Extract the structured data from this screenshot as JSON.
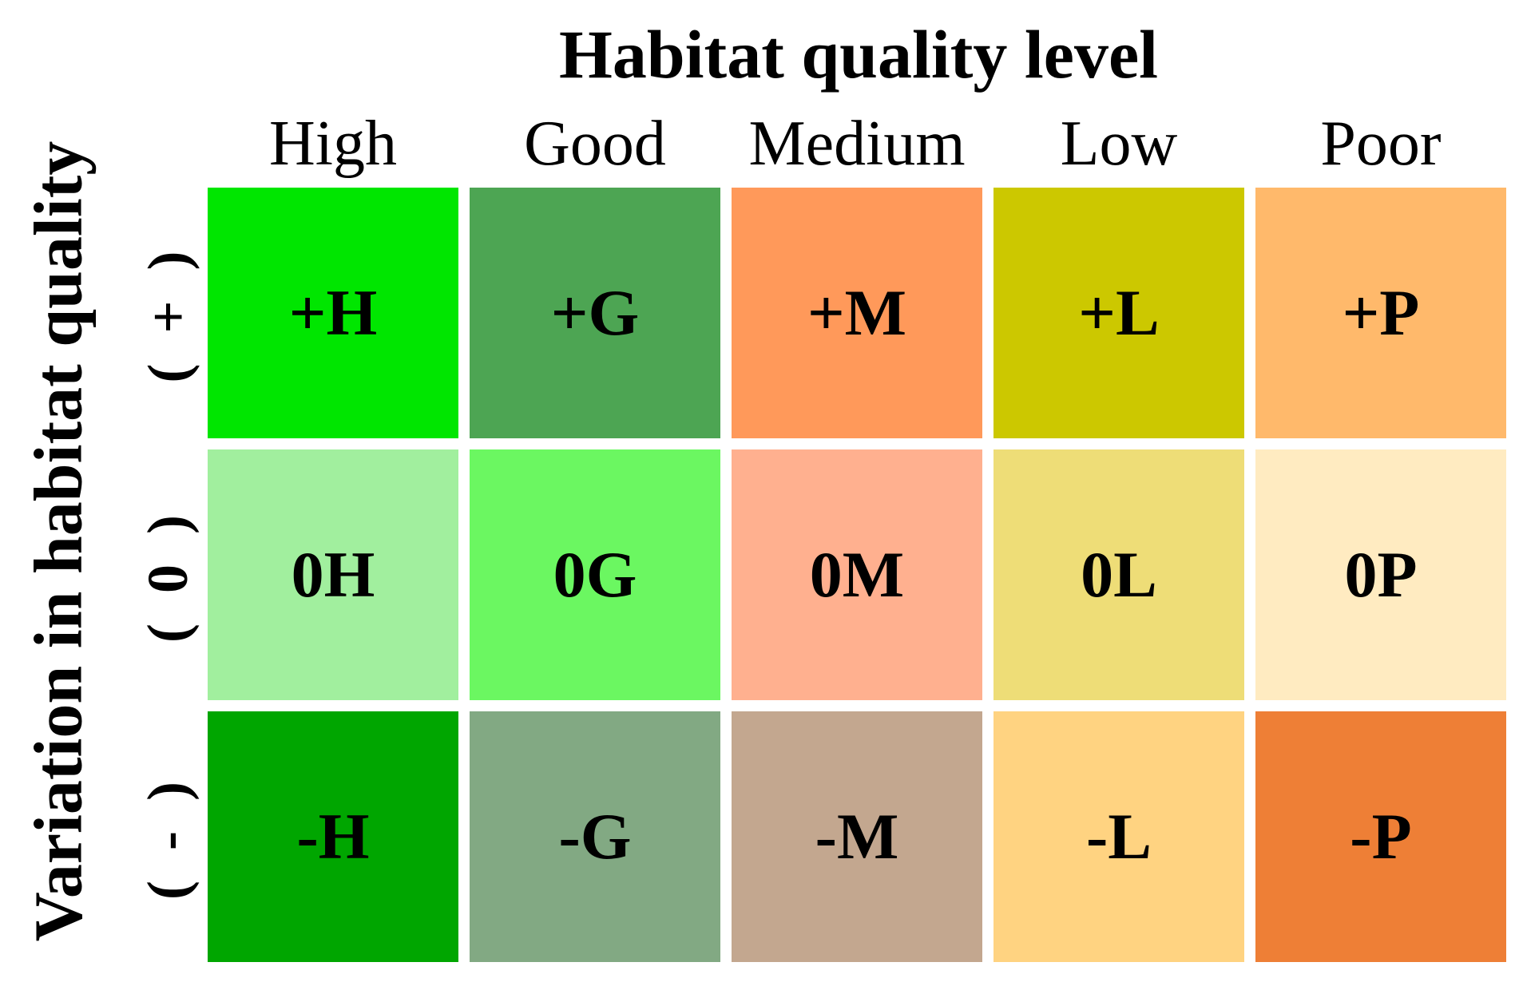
{
  "title": "Habitat quality level",
  "y_title": "Variation in habitat quality",
  "columns": [
    "High",
    "Good",
    "Medium",
    "Low",
    "Poor"
  ],
  "rows": [
    "( + )",
    "( 0 )",
    "( - )"
  ],
  "grid": [
    [
      {
        "code": "+H",
        "color": "#00E600"
      },
      {
        "code": "+G",
        "color": "#4DA553"
      },
      {
        "code": "+M",
        "color": "#FF995A"
      },
      {
        "code": "+L",
        "color": "#CCC800"
      },
      {
        "code": "+P",
        "color": "#FFB96B"
      }
    ],
    [
      {
        "code": "0H",
        "color": "#A1EF9E"
      },
      {
        "code": "0G",
        "color": "#6BF761"
      },
      {
        "code": "0M",
        "color": "#FFB08F"
      },
      {
        "code": "0L",
        "color": "#EEDD77"
      },
      {
        "code": "0P",
        "color": "#FFEBC1"
      }
    ],
    [
      {
        "code": "-H",
        "color": "#00A600"
      },
      {
        "code": "-G",
        "color": "#82A983"
      },
      {
        "code": "-M",
        "color": "#C3A78F"
      },
      {
        "code": "-L",
        "color": "#FFD381"
      },
      {
        "code": "-P",
        "color": "#EE7F36"
      }
    ]
  ]
}
